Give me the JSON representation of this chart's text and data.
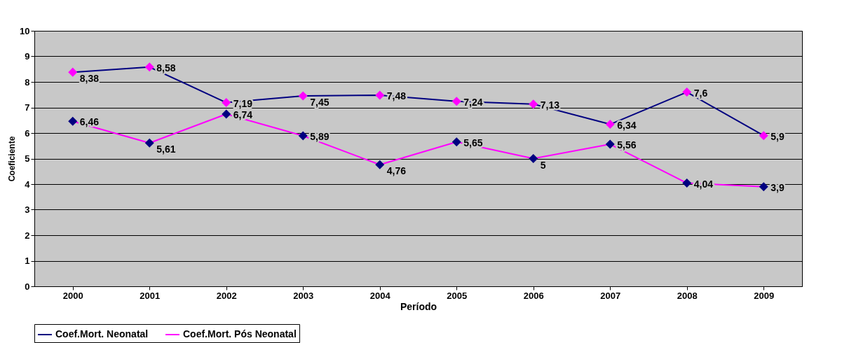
{
  "chart_data": {
    "type": "line",
    "xlabel": "Período",
    "ylabel": "Coeficiente",
    "categories": [
      "2000",
      "2001",
      "2002",
      "2003",
      "2004",
      "2005",
      "2006",
      "2007",
      "2008",
      "2009"
    ],
    "series": [
      {
        "name": "Coef.Mort. Neonatal",
        "color": "#000080",
        "colors": [
          "#ff00ff",
          "#ff00ff",
          "#ff00ff",
          "#ff00ff",
          "#ff00ff",
          "#ff00ff",
          "#ff00ff",
          "#ff00ff",
          "#ff00ff",
          "#ff00ff"
        ],
        "values": [
          8.38,
          8.58,
          7.19,
          7.45,
          7.48,
          7.24,
          7.13,
          6.34,
          7.6,
          5.9
        ],
        "value_labels": [
          "8,38",
          "8,58",
          "7,19",
          "7,45",
          "7,48",
          "7,24",
          "7,13",
          "6,34",
          "7,6",
          "5,9"
        ]
      },
      {
        "name": "Coef.Mort. Pós Neonatal",
        "color": "#ff00ff",
        "colors": [
          "#000080",
          "#000080",
          "#000080",
          "#000080",
          "#000080",
          "#000080",
          "#000080",
          "#000080",
          "#000080",
          "#000080"
        ],
        "values": [
          6.46,
          5.61,
          6.74,
          5.89,
          4.76,
          5.65,
          5,
          5.56,
          4.04,
          3.9
        ],
        "value_labels": [
          "6,46",
          "5,61",
          "6,74",
          "5,89",
          "4,76",
          "5,65",
          "5",
          "5,56",
          "4,04",
          "3,9"
        ]
      }
    ],
    "ylim": [
      0,
      10
    ],
    "yticks": [
      0,
      1,
      2,
      3,
      4,
      5,
      6,
      7,
      8,
      9,
      10
    ],
    "grid": "y",
    "legend": "bottom",
    "marker": "diamond",
    "line_style": "solid"
  }
}
